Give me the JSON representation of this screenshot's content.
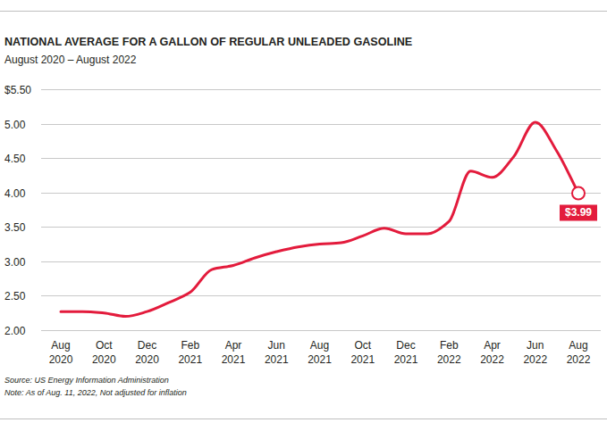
{
  "chart_data": {
    "type": "line",
    "title": "NATIONAL AVERAGE FOR A GALLON OF REGULAR UNLEADED GASOLINE",
    "subtitle": "August 2020 – August 2022",
    "source": "Source: US Energy Information Administration",
    "note": "Note: As of Aug. 11, 2022, Not adjusted for inflation",
    "categories": [
      "Aug 2020",
      null,
      "Oct 2020",
      null,
      "Dec 2020",
      null,
      "Feb 2021",
      null,
      "Apr 2021",
      null,
      "Jun 2021",
      null,
      "Aug 2021",
      null,
      "Oct 2021",
      null,
      "Dec 2021",
      null,
      "Feb 2022",
      null,
      "Apr 2022",
      null,
      "Jun 2022",
      null,
      "Aug 2022"
    ],
    "series": [
      {
        "name": "National average",
        "color": "#e31b3c",
        "values": [
          2.27,
          2.27,
          2.25,
          2.2,
          2.27,
          2.4,
          2.55,
          2.88,
          2.94,
          3.05,
          3.14,
          3.21,
          3.25,
          3.27,
          3.37,
          3.48,
          3.4,
          3.4,
          3.58,
          4.31,
          4.22,
          4.52,
          5.02,
          4.6,
          3.99
        ],
        "value_labels": [
          null,
          null,
          null,
          null,
          null,
          null,
          null,
          null,
          null,
          null,
          null,
          null,
          null,
          null,
          null,
          null,
          null,
          null,
          null,
          null,
          null,
          null,
          null,
          null,
          "$3.99"
        ]
      }
    ],
    "data_labels": true,
    "ylim": [
      2.0,
      5.5
    ],
    "yticks": [
      {
        "value": 2.0,
        "label": "2.00"
      },
      {
        "value": 2.5,
        "label": "2.50"
      },
      {
        "value": 3.0,
        "label": "3.00"
      },
      {
        "value": 3.5,
        "label": "3.50"
      },
      {
        "value": 4.0,
        "label": "4.00"
      },
      {
        "value": 4.5,
        "label": "4.50"
      },
      {
        "value": 5.0,
        "label": "5.00"
      },
      {
        "value": 5.5,
        "label": "$5.50"
      }
    ],
    "grid": true
  }
}
